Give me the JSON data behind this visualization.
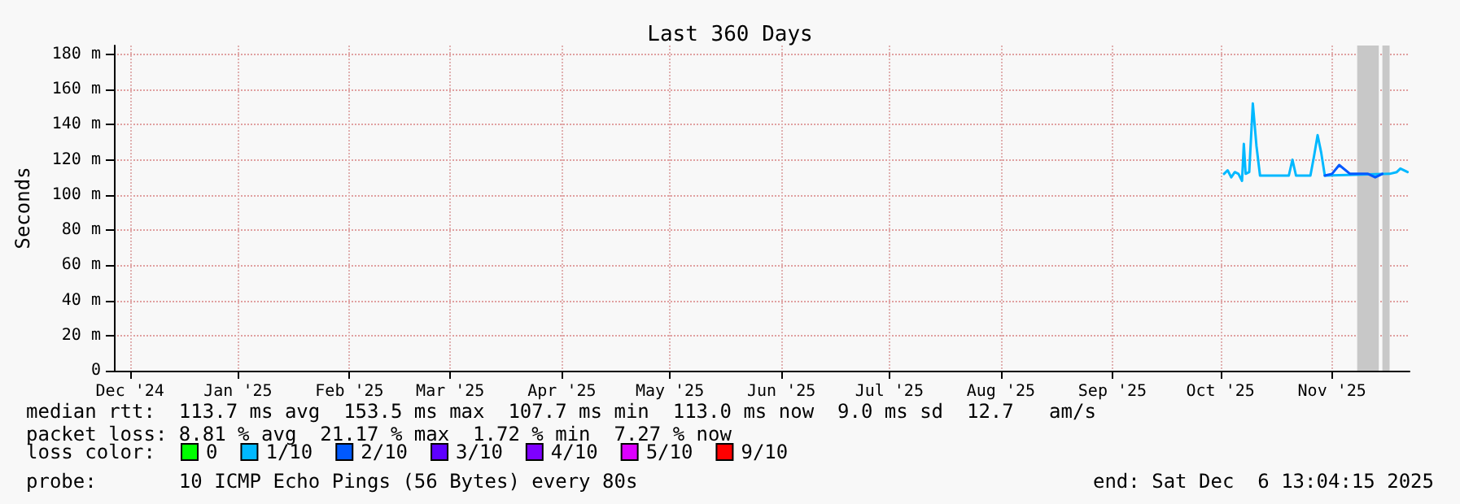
{
  "chart_data": {
    "type": "line",
    "title": "Last 360 Days",
    "ylabel": "Seconds",
    "legend_title": "loss color:",
    "xlim": [
      "2024-12-11T13:04",
      "2025-12-06T13:04"
    ],
    "xticks": [
      {
        "value": "2024-12-16",
        "label": "Dec '24"
      },
      {
        "value": "2025-01-15",
        "label": "Jan '25"
      },
      {
        "value": "2025-02-15",
        "label": "Feb '25"
      },
      {
        "value": "2025-03-15",
        "label": "Mar '25"
      },
      {
        "value": "2025-04-15",
        "label": "Apr '25"
      },
      {
        "value": "2025-05-15",
        "label": "May '25"
      },
      {
        "value": "2025-06-15",
        "label": "Jun '25"
      },
      {
        "value": "2025-07-15",
        "label": "Jul '25"
      },
      {
        "value": "2025-08-15",
        "label": "Aug '25"
      },
      {
        "value": "2025-09-15",
        "label": "Sep '25"
      },
      {
        "value": "2025-10-15",
        "label": "Oct '25"
      },
      {
        "value": "2025-11-15",
        "label": "Nov '25"
      }
    ],
    "ylim": [
      0,
      185
    ],
    "yticks": [
      0,
      {
        "value": 20,
        "label": "20 m"
      },
      {
        "value": 40,
        "label": "40 m"
      },
      {
        "value": 60,
        "label": "60 m"
      },
      {
        "value": 80,
        "label": "80 m"
      },
      {
        "value": 100,
        "label": "100 m"
      },
      {
        "value": 120,
        "label": "120 m"
      },
      {
        "value": 140,
        "label": "140 m"
      },
      {
        "value": 160,
        "label": "160 m"
      },
      {
        "value": 180,
        "label": "180 m"
      }
    ],
    "grid": true,
    "legend": "bottom",
    "marker": "none",
    "line_style": "solid",
    "series": [
      {
        "name": "0",
        "color": "#00ff00"
      },
      {
        "name": "1/10",
        "color": "#00b8ff",
        "x": [
          "2025-10-16",
          "2025-10-17",
          "2025-10-18",
          "2025-10-19",
          "2025-10-20",
          "2025-10-21",
          "2025-10-21T12:00",
          "2025-10-22",
          "2025-10-23",
          "2025-10-24",
          "2025-10-25",
          "2025-10-26",
          "2025-10-30",
          "2025-11-03",
          "2025-11-04",
          "2025-11-05",
          "2025-11-09",
          "2025-11-10",
          "2025-11-11",
          "2025-11-12",
          "2025-11-13",
          "2025-12-01",
          "2025-12-03",
          "2025-12-04",
          "2025-12-06"
        ],
        "values": [
          112,
          114,
          110,
          113,
          112,
          108,
          129,
          112,
          113,
          152,
          128,
          111,
          111,
          111,
          120,
          111,
          111,
          122,
          134,
          124,
          111,
          112,
          113,
          115,
          113
        ]
      },
      {
        "name": "2/10",
        "color": "#0059ff",
        "x": [
          "2025-11-13",
          "2025-11-15",
          "2025-11-17",
          "2025-11-20",
          "2025-11-25",
          "2025-11-27",
          "2025-11-29"
        ],
        "values": [
          111,
          112,
          117,
          112,
          112,
          110,
          112
        ]
      },
      {
        "name": "3/10",
        "color": "#5e00ff"
      },
      {
        "name": "4/10",
        "color": "#7e00ff"
      },
      {
        "name": "5/10",
        "color": "#dd00ff"
      },
      {
        "name": "9/10",
        "color": "#ff0000"
      }
    ],
    "bands": [
      {
        "axis": "x",
        "from": "2025-11-22",
        "to": "2025-11-28",
        "color": "#c8c8c8"
      },
      {
        "axis": "x",
        "from": "2025-11-29",
        "to": "2025-12-01",
        "color": "#c8c8c8"
      }
    ],
    "annotations": [
      "median rtt:  113.7 ms avg  153.5 ms max  107.7 ms min  113.0 ms now  9.0 ms sd  12.7   am/s",
      "packet loss: 8.81 % avg  21.17 % max  1.72 % min  7.27 % now",
      "probe:       10 ICMP Echo Pings (56 Bytes) every 80s",
      "end: Sat Dec  6 13:04:15 2025"
    ]
  }
}
